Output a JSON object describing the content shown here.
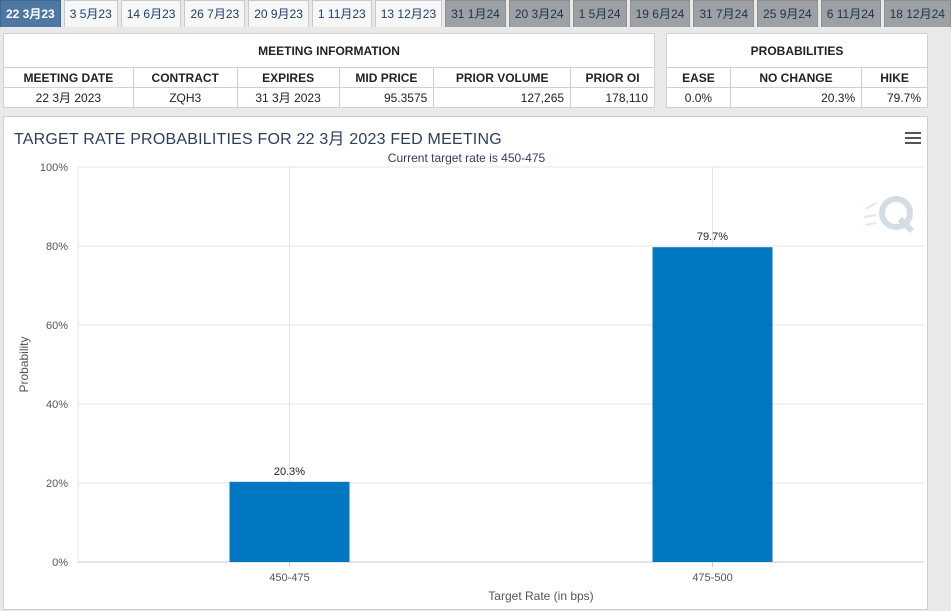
{
  "tabs": [
    {
      "label": "22 3月23",
      "state": "active"
    },
    {
      "label": "3 5月23",
      "state": "normal"
    },
    {
      "label": "14 6月23",
      "state": "normal"
    },
    {
      "label": "26 7月23",
      "state": "normal"
    },
    {
      "label": "20 9月23",
      "state": "normal"
    },
    {
      "label": "1 11月23",
      "state": "normal"
    },
    {
      "label": "13 12月23",
      "state": "normal"
    },
    {
      "label": "31 1月24",
      "state": "future"
    },
    {
      "label": "20 3月24",
      "state": "future"
    },
    {
      "label": "1 5月24",
      "state": "future"
    },
    {
      "label": "19 6月24",
      "state": "future"
    },
    {
      "label": "31 7月24",
      "state": "future"
    },
    {
      "label": "25 9月24",
      "state": "future"
    },
    {
      "label": "6 11月24",
      "state": "future"
    },
    {
      "label": "18 12月24",
      "state": "future"
    }
  ],
  "meeting": {
    "heading": "MEETING INFORMATION",
    "columns": [
      "MEETING DATE",
      "CONTRACT",
      "EXPIRES",
      "MID PRICE",
      "PRIOR VOLUME",
      "PRIOR OI"
    ],
    "row": {
      "meeting_date": "22 3月 2023",
      "contract": "ZQH3",
      "expires": "31 3月 2023",
      "mid_price": "95.3575",
      "prior_volume": "127,265",
      "prior_oi": "178,110"
    }
  },
  "probabilities": {
    "heading": "PROBABILITIES",
    "columns": [
      "EASE",
      "NO CHANGE",
      "HIKE"
    ],
    "row": {
      "ease": "0.0%",
      "no_change": "20.3%",
      "hike": "79.7%"
    }
  },
  "chart": {
    "menu_icon": "hamburger-menu-icon",
    "watermark_icon": "q-logo-icon",
    "bar_color": "#0077c0"
  },
  "chart_data": {
    "type": "bar",
    "title": "TARGET RATE PROBABILITIES FOR 22 3月 2023 FED MEETING",
    "subtitle": "Current target rate is 450-475",
    "xlabel": "Target Rate (in bps)",
    "ylabel": "Probability",
    "categories": [
      "450-475",
      "475-500"
    ],
    "values": [
      20.3,
      79.7
    ],
    "data_labels": [
      "20.3%",
      "79.7%"
    ],
    "ylim": [
      0,
      100
    ],
    "yticks": [
      "0%",
      "20%",
      "40%",
      "60%",
      "80%",
      "100%"
    ],
    "grid": true,
    "legend": "none"
  }
}
